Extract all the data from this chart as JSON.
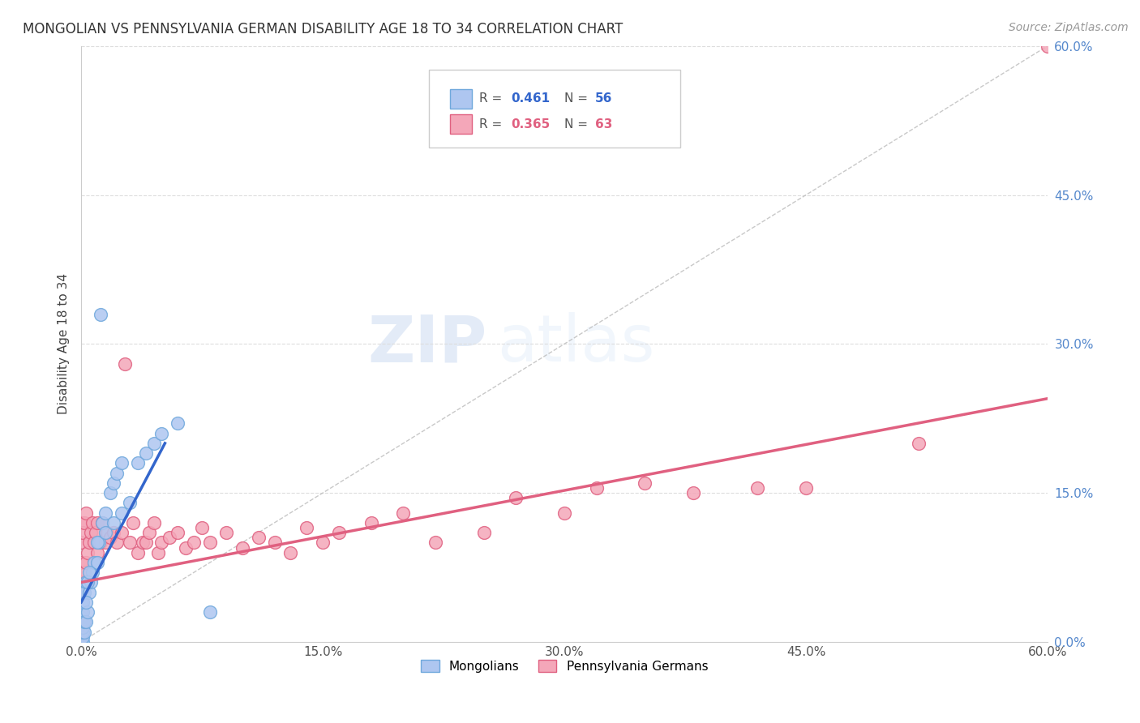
{
  "title": "MONGOLIAN VS PENNSYLVANIA GERMAN DISABILITY AGE 18 TO 34 CORRELATION CHART",
  "source": "Source: ZipAtlas.com",
  "ylabel": "Disability Age 18 to 34",
  "xlim": [
    0.0,
    0.6
  ],
  "ylim": [
    0.0,
    0.6
  ],
  "grid_color": "#dddddd",
  "background_color": "#ffffff",
  "mongolian_color": "#aec6f0",
  "mongolian_edge": "#6fa8dc",
  "pa_german_color": "#f4a7b9",
  "pa_german_edge": "#e06080",
  "mongolian_trend_color": "#3366cc",
  "pa_german_trend_color": "#e06080",
  "diagonal_color": "#bbbbbb",
  "legend_R1": "0.461",
  "legend_N1": "56",
  "legend_R2": "0.365",
  "legend_N2": "63",
  "watermark_zip": "ZIP",
  "watermark_atlas": "atlas",
  "mong_x": [
    0.0,
    0.0,
    0.0,
    0.0,
    0.0,
    0.0,
    0.0,
    0.0,
    0.0,
    0.0,
    0.0,
    0.0,
    0.0,
    0.0,
    0.0,
    0.0,
    0.001,
    0.001,
    0.001,
    0.001,
    0.001,
    0.001,
    0.001,
    0.002,
    0.002,
    0.002,
    0.003,
    0.003,
    0.004,
    0.005,
    0.006,
    0.007,
    0.008,
    0.01,
    0.011,
    0.012,
    0.013,
    0.015,
    0.018,
    0.02,
    0.022,
    0.025,
    0.01,
    0.015,
    0.02,
    0.025,
    0.03,
    0.003,
    0.004,
    0.005,
    0.035,
    0.04,
    0.045,
    0.05,
    0.06,
    0.08
  ],
  "mong_y": [
    0.0,
    0.0,
    0.0,
    0.0,
    0.0,
    0.0,
    0.0,
    0.005,
    0.01,
    0.01,
    0.015,
    0.02,
    0.025,
    0.03,
    0.04,
    0.05,
    0.0,
    0.005,
    0.01,
    0.015,
    0.02,
    0.03,
    0.04,
    0.01,
    0.02,
    0.05,
    0.02,
    0.06,
    0.03,
    0.05,
    0.06,
    0.07,
    0.08,
    0.08,
    0.1,
    0.33,
    0.12,
    0.13,
    0.15,
    0.16,
    0.17,
    0.18,
    0.1,
    0.11,
    0.12,
    0.13,
    0.14,
    0.04,
    0.06,
    0.07,
    0.18,
    0.19,
    0.2,
    0.21,
    0.22,
    0.03
  ],
  "pa_x": [
    0.0,
    0.0,
    0.0,
    0.0,
    0.001,
    0.001,
    0.002,
    0.002,
    0.003,
    0.003,
    0.004,
    0.005,
    0.006,
    0.007,
    0.008,
    0.009,
    0.01,
    0.01,
    0.012,
    0.013,
    0.015,
    0.016,
    0.018,
    0.02,
    0.022,
    0.025,
    0.027,
    0.03,
    0.032,
    0.035,
    0.038,
    0.04,
    0.042,
    0.045,
    0.048,
    0.05,
    0.055,
    0.06,
    0.065,
    0.07,
    0.075,
    0.08,
    0.09,
    0.1,
    0.11,
    0.12,
    0.13,
    0.14,
    0.15,
    0.16,
    0.18,
    0.2,
    0.22,
    0.25,
    0.27,
    0.3,
    0.32,
    0.35,
    0.38,
    0.42,
    0.45,
    0.52,
    0.6
  ],
  "pa_y": [
    0.05,
    0.08,
    0.1,
    0.12,
    0.06,
    0.11,
    0.07,
    0.12,
    0.08,
    0.13,
    0.09,
    0.1,
    0.11,
    0.12,
    0.1,
    0.11,
    0.09,
    0.12,
    0.1,
    0.12,
    0.1,
    0.11,
    0.105,
    0.11,
    0.1,
    0.11,
    0.28,
    0.1,
    0.12,
    0.09,
    0.1,
    0.1,
    0.11,
    0.12,
    0.09,
    0.1,
    0.105,
    0.11,
    0.095,
    0.1,
    0.115,
    0.1,
    0.11,
    0.095,
    0.105,
    0.1,
    0.09,
    0.115,
    0.1,
    0.11,
    0.12,
    0.13,
    0.1,
    0.11,
    0.145,
    0.13,
    0.155,
    0.16,
    0.15,
    0.155,
    0.155,
    0.2,
    0.6
  ],
  "mong_trend_x": [
    0.0,
    0.052
  ],
  "mong_trend_y": [
    0.04,
    0.2
  ],
  "pa_trend_x": [
    0.0,
    0.6
  ],
  "pa_trend_y": [
    0.06,
    0.245
  ]
}
